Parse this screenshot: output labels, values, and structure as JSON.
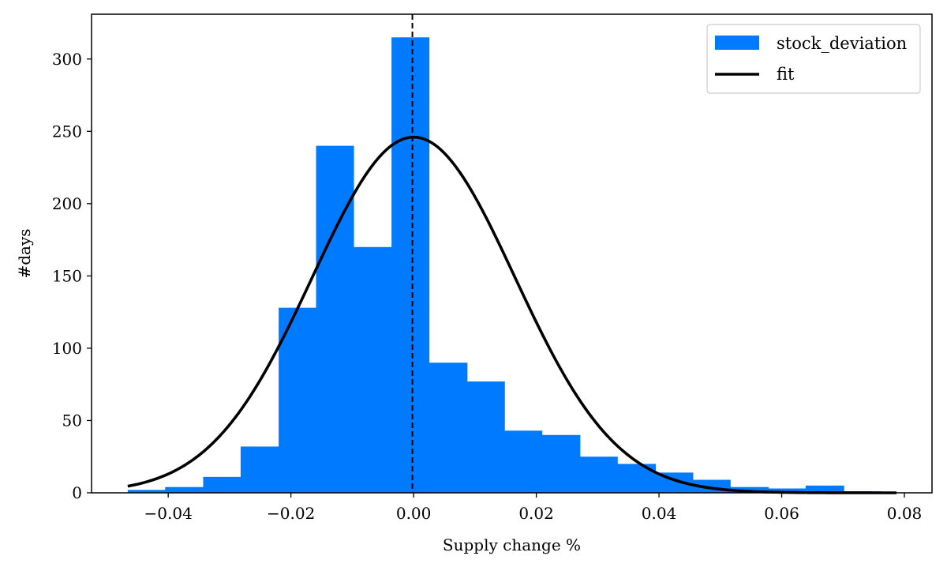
{
  "chart_data": {
    "type": "bar",
    "title": "",
    "xlabel": "Supply change %",
    "ylabel": "#days",
    "xlim": [
      -0.0525,
      0.0845
    ],
    "ylim": [
      0,
      331
    ],
    "x_ticks": [
      -0.04,
      -0.02,
      0.0,
      0.02,
      0.04,
      0.06,
      0.08
    ],
    "x_tick_labels": [
      "−0.04",
      "−0.02",
      "0.00",
      "0.02",
      "0.04",
      "0.06",
      "0.08"
    ],
    "y_ticks": [
      0,
      50,
      100,
      150,
      200,
      250,
      300
    ],
    "y_tick_labels": [
      "0",
      "50",
      "100",
      "150",
      "200",
      "250",
      "300"
    ],
    "grid": false,
    "series": [
      {
        "name": "stock_deviation",
        "kind": "histogram",
        "color": "#007AFF",
        "bin_edges": [
          -0.0466,
          -0.0405,
          -0.0343,
          -0.0282,
          -0.022,
          -0.0159,
          -0.0098,
          -0.0036,
          0.0025,
          0.0087,
          0.0148,
          0.0209,
          0.0271,
          0.0332,
          0.0394,
          0.0455,
          0.0516,
          0.0578,
          0.0639,
          0.0701,
          0.0762
        ],
        "counts": [
          2,
          4,
          11,
          32,
          128,
          240,
          170,
          315,
          90,
          77,
          43,
          40,
          25,
          20,
          14,
          9,
          4,
          3,
          5,
          1
        ]
      },
      {
        "name": "fit",
        "kind": "line",
        "color": "#000000",
        "distribution": "normal",
        "peak": 246,
        "mean": 0.0,
        "std": 0.0165,
        "x_range": [
          -0.0466,
          0.0787
        ]
      }
    ],
    "annotations": [
      {
        "type": "vline",
        "x": -0.0002,
        "style": "dashed",
        "color": "#000000"
      }
    ],
    "legend": {
      "position": "top-right",
      "entries": [
        {
          "label": "stock_deviation",
          "marker": "patch",
          "color": "#007AFF"
        },
        {
          "label": "fit",
          "marker": "line",
          "color": "#000000"
        }
      ]
    }
  }
}
